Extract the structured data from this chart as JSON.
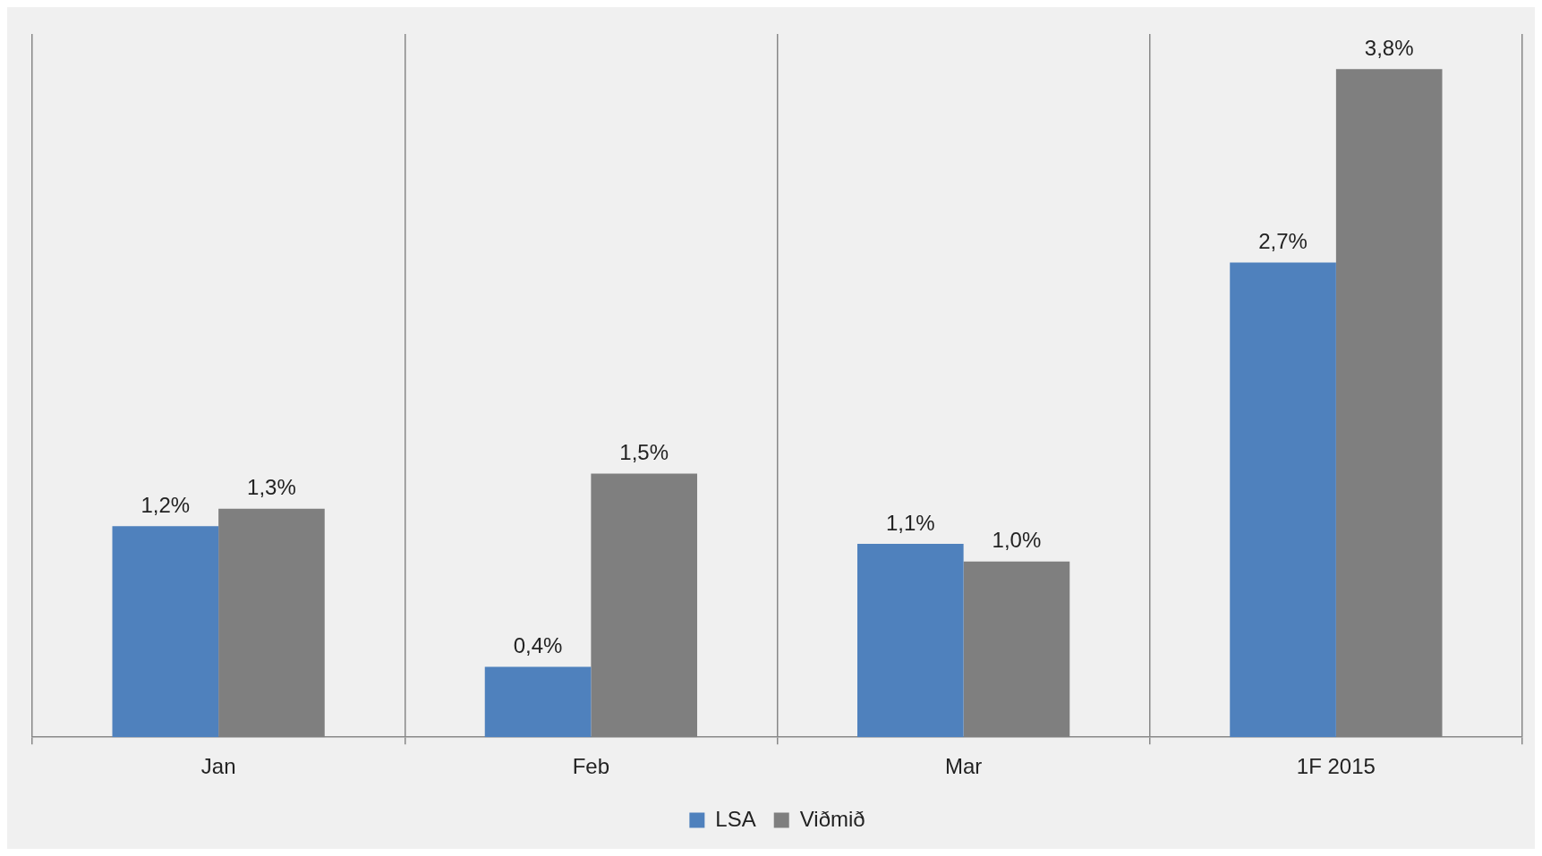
{
  "chart_data": {
    "type": "bar",
    "categories": [
      "Jan",
      "Feb",
      "Mar",
      "1F 2015"
    ],
    "series": [
      {
        "name": "LSA",
        "color": "#4f81bd",
        "values": [
          1.2,
          0.4,
          1.1,
          2.7
        ],
        "value_labels": [
          "1,2%",
          "0,4%",
          "1,1%",
          "2,7%"
        ]
      },
      {
        "name": "Viðmið",
        "color": "#7f7f7f",
        "values": [
          1.3,
          1.5,
          1.0,
          3.8
        ],
        "value_labels": [
          "1,3%",
          "1,5%",
          "1,0%",
          "3,8%"
        ]
      }
    ],
    "grid": "x",
    "legend": "bottom"
  }
}
